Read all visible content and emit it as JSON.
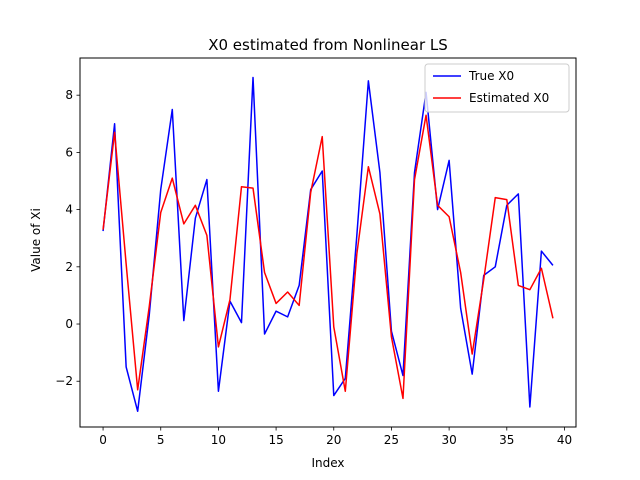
{
  "chart_data": {
    "type": "line",
    "title": "X0 estimated from Nonlinear LS",
    "xlabel": "Index",
    "ylabel": "Value of Xi",
    "xlim": [
      -2,
      41
    ],
    "ylim": [
      -3.6,
      9.3
    ],
    "xticks": [
      0,
      5,
      10,
      15,
      20,
      25,
      30,
      35,
      40
    ],
    "yticks": [
      -2,
      0,
      2,
      4,
      6,
      8
    ],
    "grid": false,
    "legend": {
      "position": "top-right"
    },
    "x": [
      0,
      1,
      2,
      3,
      4,
      5,
      6,
      7,
      8,
      9,
      10,
      11,
      12,
      13,
      14,
      15,
      16,
      17,
      18,
      19,
      20,
      21,
      22,
      23,
      24,
      25,
      26,
      27,
      28,
      29,
      30,
      31,
      32,
      33,
      34,
      35,
      36,
      37,
      38,
      39
    ],
    "series": [
      {
        "name": "True X0",
        "color": "#0000ff",
        "values": [
          3.25,
          7.0,
          -1.5,
          -3.05,
          0.3,
          4.7,
          7.5,
          0.12,
          3.7,
          5.05,
          -2.35,
          0.8,
          0.05,
          8.62,
          -0.35,
          0.45,
          0.25,
          1.35,
          4.7,
          5.35,
          -2.5,
          -1.9,
          3.1,
          8.5,
          5.3,
          -0.25,
          -1.8,
          5.3,
          8.1,
          4.0,
          5.72,
          0.55,
          -1.75,
          1.7,
          2.0,
          4.15,
          4.55,
          -2.9,
          2.55,
          2.05
        ]
      },
      {
        "name": "Estimated X0",
        "color": "#ff0000",
        "values": [
          3.3,
          6.7,
          2.1,
          -2.3,
          0.6,
          3.9,
          5.1,
          3.5,
          4.15,
          3.1,
          -0.8,
          0.85,
          4.8,
          4.75,
          1.8,
          0.72,
          1.12,
          0.65,
          4.6,
          6.55,
          -0.1,
          -2.35,
          2.45,
          5.5,
          3.85,
          -0.45,
          -2.6,
          5.05,
          7.3,
          4.15,
          3.75,
          1.8,
          -1.05,
          1.55,
          4.42,
          4.35,
          1.35,
          1.2,
          1.95,
          0.2
        ]
      }
    ]
  }
}
